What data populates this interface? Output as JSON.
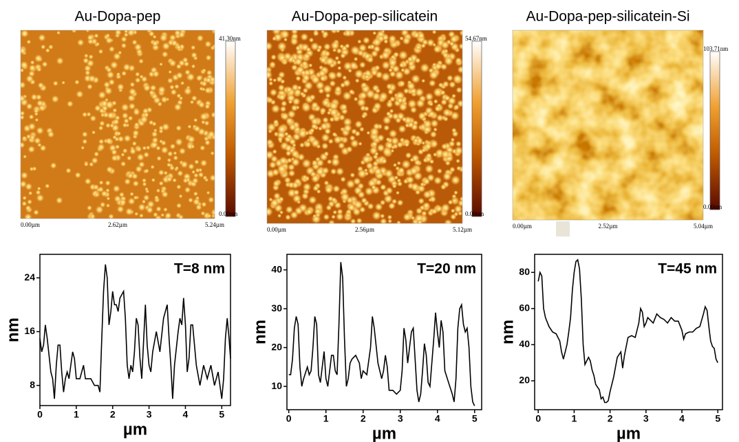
{
  "images": [
    {
      "title": "Au-Dopa-pep",
      "scale_max": "41.30nm",
      "scale_min": "0.00nm",
      "x_labels": [
        "0.00µm",
        "2.62µm",
        "5.24µm"
      ]
    },
    {
      "title": "Au-Dopa-pep-silicatein",
      "scale_max": "54.67nm",
      "scale_min": "0.00nm",
      "x_labels": [
        "0.00µm",
        "2.56µm",
        "5.12µm"
      ]
    },
    {
      "title": "Au-Dopa-pep-silicatein-Si",
      "scale_max": "103.71nm",
      "scale_min": "0.00nm",
      "x_labels": [
        "0.00µm",
        "2.52µm",
        "5.04µm"
      ]
    }
  ],
  "chart_data": [
    {
      "type": "line",
      "annotation": "T=8 nm",
      "x_label": "µm",
      "y_label": "nm",
      "color": "#000000",
      "xlim": [
        0,
        5.24
      ],
      "xticks": [
        0,
        1,
        2,
        3,
        4,
        5
      ],
      "ylim": [
        5,
        27.5
      ],
      "yticks": [
        8,
        16,
        24
      ],
      "x": [
        0,
        0.05,
        0.1,
        0.15,
        0.2,
        0.3,
        0.35,
        0.4,
        0.45,
        0.5,
        0.55,
        0.6,
        0.65,
        0.7,
        0.75,
        0.8,
        0.85,
        0.9,
        0.95,
        1.0,
        1.1,
        1.2,
        1.25,
        1.3,
        1.4,
        1.5,
        1.6,
        1.65,
        1.7,
        1.75,
        1.8,
        1.85,
        1.9,
        1.95,
        2.0,
        2.05,
        2.1,
        2.15,
        2.2,
        2.3,
        2.35,
        2.4,
        2.45,
        2.5,
        2.55,
        2.6,
        2.65,
        2.7,
        2.75,
        2.8,
        2.9,
        2.95,
        3.0,
        3.05,
        3.1,
        3.2,
        3.3,
        3.4,
        3.5,
        3.55,
        3.6,
        3.65,
        3.7,
        3.8,
        3.85,
        3.9,
        3.95,
        4.0,
        4.05,
        4.1,
        4.15,
        4.2,
        4.3,
        4.4,
        4.5,
        4.6,
        4.7,
        4.8,
        4.9,
        5.0,
        5.05,
        5.1,
        5.15,
        5.2,
        5.24
      ],
      "values": [
        15,
        13,
        14,
        17,
        15,
        10,
        9,
        6,
        11,
        14,
        14,
        10,
        7,
        9,
        10,
        9,
        11,
        13,
        12,
        9,
        9,
        11,
        9,
        9,
        9,
        8,
        8,
        7,
        15,
        22,
        26,
        24,
        17,
        19,
        22,
        20,
        20,
        19,
        21,
        22,
        18,
        11,
        9,
        11,
        10,
        13,
        18,
        17,
        12,
        9,
        20,
        14,
        11,
        10,
        13,
        16,
        13,
        18,
        20,
        15,
        11,
        6,
        11,
        16,
        18,
        17,
        21,
        17,
        10,
        12,
        17,
        17,
        11,
        8,
        11,
        9,
        11,
        8,
        10,
        6,
        9,
        15,
        18,
        15,
        12
      ]
    },
    {
      "type": "line",
      "annotation": "T=20 nm",
      "x_label": "µm",
      "y_label": "nm",
      "color": "#000000",
      "xlim": [
        -0.05,
        5.19
      ],
      "xticks": [
        0,
        1,
        2,
        3,
        4,
        5
      ],
      "ylim": [
        4,
        44
      ],
      "yticks": [
        10,
        20,
        30,
        40
      ],
      "x": [
        0,
        0.05,
        0.1,
        0.15,
        0.2,
        0.25,
        0.3,
        0.35,
        0.4,
        0.5,
        0.55,
        0.6,
        0.65,
        0.7,
        0.75,
        0.8,
        0.85,
        0.9,
        0.95,
        1.0,
        1.05,
        1.1,
        1.15,
        1.2,
        1.25,
        1.3,
        1.35,
        1.4,
        1.45,
        1.5,
        1.55,
        1.6,
        1.65,
        1.7,
        1.8,
        1.9,
        1.95,
        2.0,
        2.1,
        2.2,
        2.25,
        2.3,
        2.4,
        2.5,
        2.55,
        2.6,
        2.65,
        2.7,
        2.8,
        2.9,
        3.0,
        3.05,
        3.1,
        3.15,
        3.2,
        3.3,
        3.35,
        3.4,
        3.45,
        3.5,
        3.55,
        3.6,
        3.65,
        3.7,
        3.75,
        3.8,
        3.9,
        3.95,
        4.0,
        4.05,
        4.1,
        4.15,
        4.2,
        4.3,
        4.4,
        4.45,
        4.5,
        4.55,
        4.6,
        4.65,
        4.7,
        4.75,
        4.8,
        4.85,
        4.9,
        4.95,
        5.0
      ],
      "values": [
        13,
        13,
        17,
        25,
        28,
        26,
        15,
        10,
        12,
        15,
        13,
        14,
        20,
        28,
        26,
        13,
        11,
        15,
        19,
        12,
        10,
        14,
        18,
        18,
        14,
        13,
        26,
        42,
        38,
        22,
        10,
        12,
        16,
        17,
        18,
        16,
        12,
        14,
        13,
        20,
        28,
        25,
        16,
        12,
        14,
        18,
        15,
        9,
        9,
        8,
        9,
        14,
        25,
        22,
        16,
        24,
        25,
        17,
        9,
        6,
        8,
        14,
        21,
        18,
        11,
        10,
        22,
        29,
        24,
        20,
        27,
        24,
        14,
        11,
        8,
        6,
        12,
        25,
        30,
        31,
        26,
        24,
        25,
        20,
        10,
        6,
        5
      ]
    },
    {
      "type": "line",
      "annotation": "T=45 nm",
      "x_label": "µm",
      "y_label": "nm",
      "color": "#000000",
      "xlim": [
        -0.1,
        5.13
      ],
      "xticks": [
        0,
        1,
        2,
        3,
        4,
        5
      ],
      "ylim": [
        4,
        90
      ],
      "yticks": [
        20,
        40,
        60,
        80
      ],
      "x": [
        0,
        0.05,
        0.1,
        0.15,
        0.2,
        0.3,
        0.4,
        0.5,
        0.6,
        0.65,
        0.7,
        0.75,
        0.8,
        0.85,
        0.9,
        0.95,
        1.0,
        1.05,
        1.1,
        1.15,
        1.2,
        1.25,
        1.3,
        1.35,
        1.4,
        1.45,
        1.5,
        1.55,
        1.6,
        1.7,
        1.75,
        1.8,
        1.85,
        1.9,
        1.95,
        2.0,
        2.1,
        2.2,
        2.3,
        2.35,
        2.4,
        2.5,
        2.6,
        2.7,
        2.8,
        2.85,
        2.9,
        2.95,
        3.0,
        3.05,
        3.1,
        3.2,
        3.3,
        3.4,
        3.5,
        3.6,
        3.7,
        3.8,
        3.9,
        4.0,
        4.05,
        4.1,
        4.2,
        4.3,
        4.4,
        4.5,
        4.6,
        4.65,
        4.7,
        4.75,
        4.8,
        4.85,
        4.9,
        4.95,
        5.0
      ],
      "values": [
        75,
        80,
        78,
        60,
        55,
        50,
        47,
        46,
        42,
        36,
        32,
        36,
        40,
        47,
        55,
        70,
        80,
        86,
        87,
        82,
        65,
        40,
        29,
        31,
        33,
        31,
        26,
        23,
        18,
        15,
        10,
        11,
        8,
        8,
        9,
        14,
        22,
        33,
        36,
        27,
        34,
        44,
        45,
        44,
        52,
        60,
        58,
        50,
        52,
        55,
        54,
        52,
        57,
        55,
        54,
        52,
        55,
        53,
        53,
        48,
        43,
        46,
        47,
        47,
        49,
        50,
        57,
        61,
        59,
        50,
        42,
        39,
        38,
        32,
        30
      ]
    }
  ]
}
